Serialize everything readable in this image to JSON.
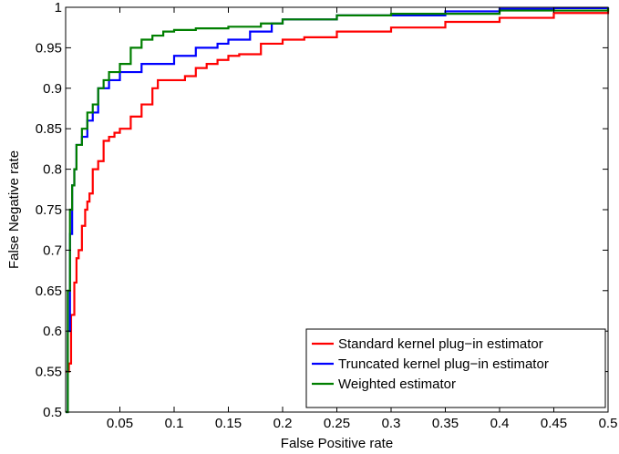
{
  "chart_data": {
    "type": "line",
    "title": "",
    "xlabel": "False Positive rate",
    "ylabel": "False Negative rate",
    "xlim": [
      0,
      0.5
    ],
    "ylim": [
      0.5,
      1
    ],
    "xticks": [
      0.05,
      0.1,
      0.15,
      0.2,
      0.25,
      0.3,
      0.35,
      0.4,
      0.45,
      0.5
    ],
    "yticks": [
      0.5,
      0.55,
      0.6,
      0.65,
      0.7,
      0.75,
      0.8,
      0.85,
      0.9,
      0.95,
      1
    ],
    "xtick_labels": [
      "0.05",
      "0.1",
      "0.15",
      "0.2",
      "0.25",
      "0.3",
      "0.35",
      "0.4",
      "0.45",
      "0.5"
    ],
    "ytick_labels": [
      "0.5",
      "0.55",
      "0.6",
      "0.65",
      "0.7",
      "0.75",
      "0.8",
      "0.85",
      "0.9",
      "0.95",
      "1"
    ],
    "grid": false,
    "legend_position": "bottom-right",
    "series": [
      {
        "name": "Standard kernel plug−in estimator",
        "color": "#ff0000",
        "x": [
          0,
          0.003,
          0.005,
          0.008,
          0.01,
          0.012,
          0.015,
          0.018,
          0.02,
          0.022,
          0.025,
          0.03,
          0.035,
          0.04,
          0.045,
          0.05,
          0.06,
          0.07,
          0.08,
          0.085,
          0.09,
          0.1,
          0.11,
          0.12,
          0.13,
          0.14,
          0.15,
          0.16,
          0.18,
          0.2,
          0.22,
          0.25,
          0.3,
          0.35,
          0.4,
          0.45,
          0.5
        ],
        "y": [
          0.55,
          0.56,
          0.62,
          0.66,
          0.69,
          0.7,
          0.73,
          0.75,
          0.76,
          0.77,
          0.8,
          0.81,
          0.835,
          0.84,
          0.845,
          0.85,
          0.865,
          0.88,
          0.9,
          0.91,
          0.91,
          0.91,
          0.915,
          0.925,
          0.93,
          0.935,
          0.94,
          0.942,
          0.955,
          0.96,
          0.963,
          0.97,
          0.975,
          0.982,
          0.987,
          0.993,
          0.998
        ]
      },
      {
        "name": "Truncated kernel plug−in estimator",
        "color": "#0000ff",
        "x": [
          0,
          0.002,
          0.004,
          0.006,
          0.008,
          0.01,
          0.015,
          0.02,
          0.025,
          0.03,
          0.035,
          0.04,
          0.05,
          0.06,
          0.07,
          0.08,
          0.1,
          0.12,
          0.14,
          0.15,
          0.17,
          0.19,
          0.2,
          0.25,
          0.3,
          0.35,
          0.4,
          0.45,
          0.5
        ],
        "y": [
          0.5,
          0.6,
          0.72,
          0.78,
          0.8,
          0.83,
          0.84,
          0.86,
          0.87,
          0.9,
          0.9,
          0.91,
          0.92,
          0.92,
          0.93,
          0.93,
          0.94,
          0.95,
          0.955,
          0.96,
          0.97,
          0.98,
          0.985,
          0.99,
          0.99,
          0.995,
          0.998,
          0.999,
          1.0
        ]
      },
      {
        "name": "Weighted estimator",
        "color": "#007f00",
        "x": [
          0,
          0.002,
          0.004,
          0.006,
          0.008,
          0.01,
          0.015,
          0.02,
          0.025,
          0.03,
          0.035,
          0.04,
          0.05,
          0.06,
          0.07,
          0.08,
          0.09,
          0.1,
          0.12,
          0.15,
          0.18,
          0.2,
          0.25,
          0.3,
          0.4,
          0.5
        ],
        "y": [
          0.5,
          0.65,
          0.75,
          0.78,
          0.8,
          0.83,
          0.85,
          0.87,
          0.88,
          0.9,
          0.91,
          0.92,
          0.93,
          0.95,
          0.96,
          0.965,
          0.97,
          0.972,
          0.974,
          0.976,
          0.98,
          0.985,
          0.99,
          0.992,
          0.996,
          0.999
        ]
      }
    ]
  }
}
